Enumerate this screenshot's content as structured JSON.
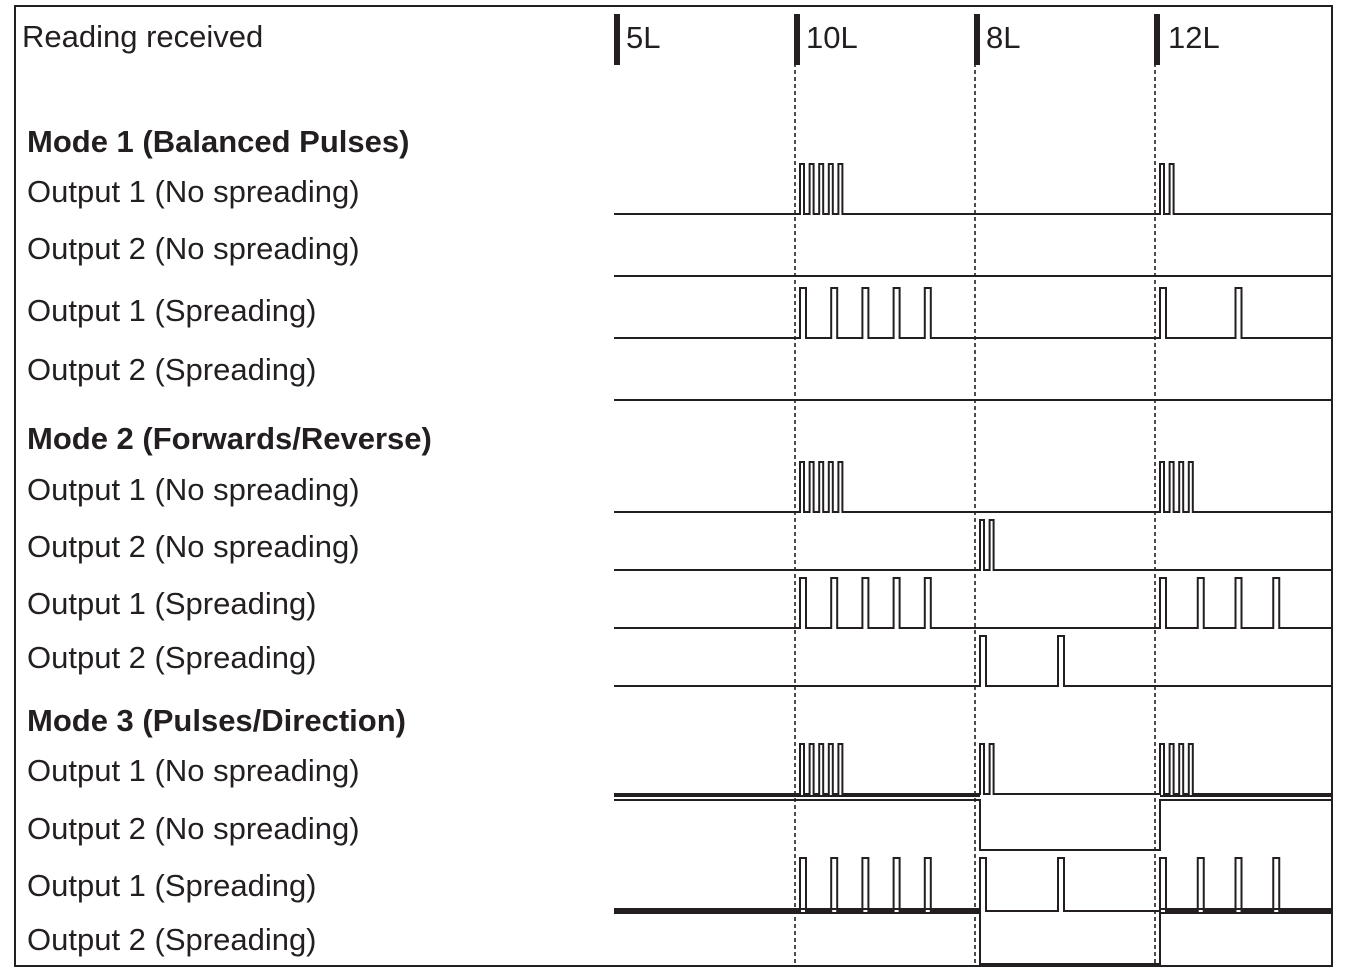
{
  "header_label": "Reading received",
  "markers": [
    {
      "label": "5L"
    },
    {
      "label": "10L"
    },
    {
      "label": "8L"
    },
    {
      "label": "12L"
    }
  ],
  "modes": [
    {
      "title": "Mode 1 (Balanced Pulses)",
      "rows": [
        {
          "label": "Output 1 (No spreading)",
          "pulses": {
            "10L": 5,
            "12L": 2
          },
          "spreading": false
        },
        {
          "label": "Output 2 (No spreading)",
          "pulses": {},
          "spreading": false
        },
        {
          "label": "Output 1 (Spreading)",
          "pulses": {
            "10L": 5,
            "12L": 2
          },
          "spreading": true
        },
        {
          "label": "Output 2 (Spreading)",
          "pulses": {},
          "spreading": true
        }
      ]
    },
    {
      "title": "Mode 2 (Forwards/Reverse)",
      "rows": [
        {
          "label": "Output 1 (No spreading)",
          "pulses": {
            "10L": 5,
            "12L": 4
          },
          "spreading": false
        },
        {
          "label": "Output 2 (No spreading)",
          "pulses": {
            "8L": 2
          },
          "spreading": false
        },
        {
          "label": "Output 1 (Spreading)",
          "pulses": {
            "10L": 5,
            "12L": 4
          },
          "spreading": true
        },
        {
          "label": "Output 2 (Spreading)",
          "pulses": {
            "8L": 2
          },
          "spreading": true
        }
      ]
    },
    {
      "title": "Mode 3 (Pulses/Direction)",
      "rows": [
        {
          "label": "Output 1 (No spreading)",
          "pulses": {
            "10L": 5,
            "8L": 2,
            "12L": 4
          },
          "spreading": false
        },
        {
          "label": "Output 2 (No spreading)",
          "direction": [
            "high",
            "high",
            "low",
            "high"
          ],
          "spreading": false
        },
        {
          "label": "Output 1 (Spreading)",
          "pulses": {
            "10L": 5,
            "8L": 2,
            "12L": 4
          },
          "spreading": true
        },
        {
          "label": "Output 2 (Spreading)",
          "direction": [
            "high",
            "high",
            "low",
            "high"
          ],
          "spreading": true
        }
      ]
    }
  ]
}
